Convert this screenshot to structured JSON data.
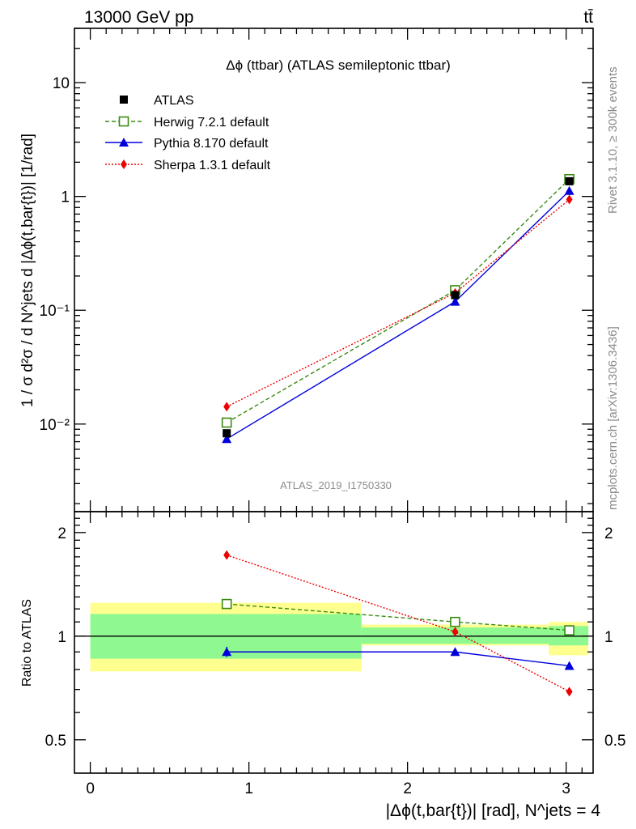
{
  "header": {
    "left": "13000 GeV pp",
    "right": "tt̄"
  },
  "side": {
    "rivet": "Rivet 3.1.10, ≥ 300k events",
    "mcplots": "mcplots.cern.ch [arXiv:1306.3436]"
  },
  "main_panel": {
    "title": "Δϕ (ttbar) (ATLAS semileptonic ttbar)",
    "ylabel": "1 / σ d²σ / d N^jets d |Δϕ(t,bar{t})| [1/rad]",
    "watermark": "ATLAS_2019_I1750330",
    "y_ticks": [
      "10⁻²",
      "10⁻¹",
      "1",
      "10"
    ]
  },
  "ratio_panel": {
    "ylabel": "Ratio to ATLAS",
    "y_ticks": [
      "0.5",
      "1",
      "2"
    ]
  },
  "xaxis": {
    "label": "|Δϕ(t,bar{t})| [rad], N^jets = 4",
    "ticks": [
      "0",
      "1",
      "2",
      "3"
    ]
  },
  "legend": [
    {
      "name": "ATLAS",
      "color": "#000000",
      "marker": "square-filled",
      "dash": "solid"
    },
    {
      "name": "Herwig 7.2.1 default",
      "color": "#3a8a12",
      "marker": "square-open",
      "dash": "dashed"
    },
    {
      "name": "Pythia 8.170 default",
      "color": "#0000dd",
      "marker": "triangle",
      "dash": "solid"
    },
    {
      "name": "Sherpa 1.3.1 default",
      "color": "#ee0000",
      "marker": "diamond",
      "dash": "dotted"
    }
  ],
  "chart_data": {
    "type": "line",
    "title": "Δϕ (ttbar) (ATLAS semileptonic ttbar)",
    "xlabel": "|Δϕ(t,bar{t})| [rad], N^jets = 4",
    "ylabel": "1 / σ d²σ / d N^jets d |Δϕ(t,bar{t})| [1/rad]",
    "xlim": [
      -0.1,
      3.17
    ],
    "ylim": [
      0.0017,
      30
    ],
    "yscale": "log",
    "x": [
      0.86,
      2.3,
      3.02
    ],
    "bins": [
      [
        0,
        1.71
      ],
      [
        1.71,
        2.89
      ],
      [
        2.89,
        3.14
      ]
    ],
    "series": [
      {
        "name": "ATLAS",
        "values": [
          0.0083,
          0.136,
          1.36
        ]
      },
      {
        "name": "Herwig 7.2.1 default",
        "values": [
          0.0103,
          0.15,
          1.42
        ]
      },
      {
        "name": "Pythia 8.170 default",
        "values": [
          0.0074,
          0.119,
          1.12
        ]
      },
      {
        "name": "Sherpa 1.3.1 default",
        "values": [
          0.0142,
          0.142,
          0.94
        ]
      }
    ],
    "ratio": {
      "ylabel": "Ratio to ATLAS",
      "ylim": [
        0.4,
        2.3
      ],
      "yscale": "log",
      "band_inner": [
        [
          0.86,
          1.16
        ],
        [
          0.95,
          1.06
        ],
        [
          0.94,
          1.07
        ]
      ],
      "band_outer": [
        [
          0.79,
          1.25
        ],
        [
          0.94,
          1.08
        ],
        [
          0.88,
          1.1
        ]
      ],
      "series": [
        {
          "name": "Herwig 7.2.1 default",
          "values": [
            1.24,
            1.1,
            1.04
          ]
        },
        {
          "name": "Pythia 8.170 default",
          "values": [
            0.9,
            0.9,
            0.82
          ]
        },
        {
          "name": "Sherpa 1.3.1 default",
          "values": [
            1.72,
            1.03,
            0.69
          ]
        }
      ]
    }
  }
}
